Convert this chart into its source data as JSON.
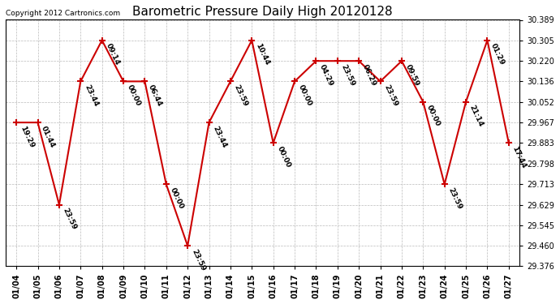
{
  "title": "Barometric Pressure Daily High 20120128",
  "copyright": "Copyright 2012 Cartronics.com",
  "x_labels": [
    "01/04",
    "01/05",
    "01/06",
    "01/07",
    "01/08",
    "01/09",
    "01/10",
    "01/11",
    "01/12",
    "01/13",
    "01/14",
    "01/15",
    "01/16",
    "01/17",
    "01/18",
    "01/19",
    "01/20",
    "01/21",
    "01/22",
    "01/23",
    "01/24",
    "01/25",
    "01/26",
    "01/27"
  ],
  "x_indices": [
    0,
    1,
    2,
    3,
    4,
    5,
    6,
    7,
    8,
    9,
    10,
    11,
    12,
    13,
    14,
    15,
    16,
    17,
    18,
    19,
    20,
    21,
    22,
    23
  ],
  "y_values": [
    29.967,
    29.967,
    29.629,
    30.136,
    30.305,
    30.136,
    30.136,
    29.713,
    29.46,
    29.967,
    30.136,
    30.305,
    29.883,
    30.136,
    30.22,
    30.22,
    30.22,
    30.136,
    30.22,
    30.052,
    29.713,
    30.052,
    30.305,
    29.883
  ],
  "point_labels": [
    "19:29",
    "01:44",
    "23:59",
    "23:44",
    "09:14",
    "00:00",
    "06:44",
    "00:00",
    "23:59",
    "23:44",
    "23:59",
    "10:44",
    "00:00",
    "00:00",
    "04:29",
    "23:59",
    "06:29",
    "23:59",
    "09:59",
    "00:00",
    "23:59",
    "21:14",
    "01:29",
    "17:44"
  ],
  "y_ticks": [
    29.376,
    29.46,
    29.545,
    29.629,
    29.713,
    29.798,
    29.883,
    29.967,
    30.052,
    30.136,
    30.22,
    30.305,
    30.389
  ],
  "line_color": "#cc0000",
  "marker_color": "#cc0000",
  "grid_color": "#bbbbbb",
  "bg_color": "#ffffff",
  "plot_bg_color": "#ffffff",
  "title_fontsize": 11,
  "label_fontsize": 6.5,
  "tick_fontsize": 7,
  "copyright_fontsize": 6.5
}
